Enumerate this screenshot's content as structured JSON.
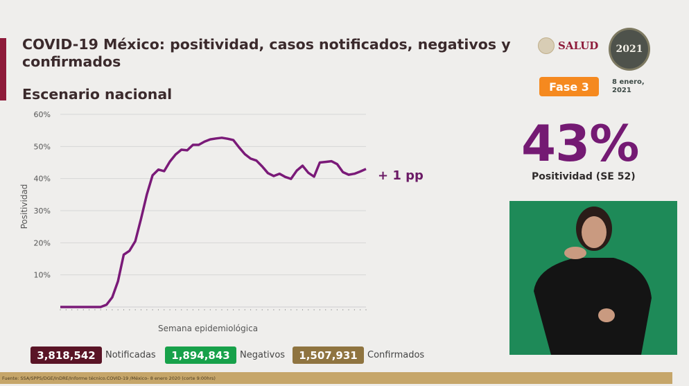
{
  "header": {
    "title": "COVID-19 México: positividad, casos notificados, negativos y confirmados",
    "subtitle": "Escenario nacional"
  },
  "logos": {
    "salud": "SALUD",
    "seal": "2021"
  },
  "phase_badge": "Fase 3",
  "date": "8 enero, 2021",
  "positivity": {
    "value": "43%",
    "label": "Positividad (SE 52)"
  },
  "change_label": "+ 1 pp",
  "chart_data": {
    "type": "line",
    "xlabel": "Semana epidemiológica",
    "ylabel": "Positividad",
    "ylim": [
      0,
      60
    ],
    "yticks": [
      "10%",
      "20%",
      "30%",
      "40%",
      "50%",
      "60%"
    ],
    "grid": true,
    "color": "#7a1a78",
    "values": [
      0,
      0,
      0,
      0,
      0,
      0,
      0,
      0,
      0.7,
      3,
      8,
      16.3,
      17.5,
      20.5,
      27.5,
      35,
      41,
      42.8,
      42.3,
      45.3,
      47.5,
      49,
      48.8,
      50.5,
      50.5,
      51.5,
      52.2,
      52.5,
      52.7,
      52.4,
      52,
      49.7,
      47.6,
      46.2,
      45.6,
      43.8,
      41.7,
      40.8,
      41.5,
      40.5,
      39.9,
      42.5,
      44,
      41.8,
      40.6,
      45,
      45.2,
      45.4,
      44.5,
      42,
      41.2,
      41.5,
      42.2,
      43
    ]
  },
  "totals": [
    {
      "value": "3,818,542",
      "label": "Notificadas",
      "color": "#5a1426"
    },
    {
      "value": "1,894,843",
      "label": "Negativos",
      "color": "#17a14a"
    },
    {
      "value": "1,507,931",
      "label": "Confirmados",
      "color": "#8f7440"
    }
  ],
  "footer": "Fuente: SSA/SPPS/DGE/InDRE/Informe técnico.COVID-19 /México- 8 enero 2020 (corte 9:00hrs)"
}
